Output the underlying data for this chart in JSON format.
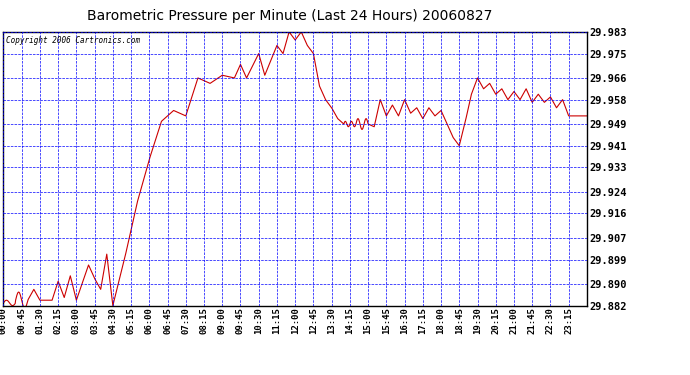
{
  "title": "Barometric Pressure per Minute (Last 24 Hours) 20060827",
  "copyright": "Copyright 2006 Cartronics.com",
  "background_color": "#ffffff",
  "plot_bg_color": "#ffffff",
  "grid_color": "#0000ff",
  "line_color": "#cc0000",
  "yticks": [
    29.882,
    29.89,
    29.899,
    29.907,
    29.916,
    29.924,
    29.933,
    29.941,
    29.949,
    29.958,
    29.966,
    29.975,
    29.983
  ],
  "xtick_labels": [
    "00:00",
    "00:45",
    "01:30",
    "02:15",
    "03:00",
    "03:45",
    "04:30",
    "05:15",
    "06:00",
    "06:45",
    "07:30",
    "08:15",
    "09:00",
    "09:45",
    "10:30",
    "11:15",
    "12:00",
    "12:45",
    "13:30",
    "14:15",
    "15:00",
    "15:45",
    "16:30",
    "17:15",
    "18:00",
    "18:45",
    "19:30",
    "20:15",
    "21:00",
    "21:45",
    "22:30",
    "23:15"
  ],
  "ymin": 29.882,
  "ymax": 29.983,
  "title_fontsize": 10,
  "tick_fontsize": 7.5,
  "xtick_fontsize": 6.5
}
